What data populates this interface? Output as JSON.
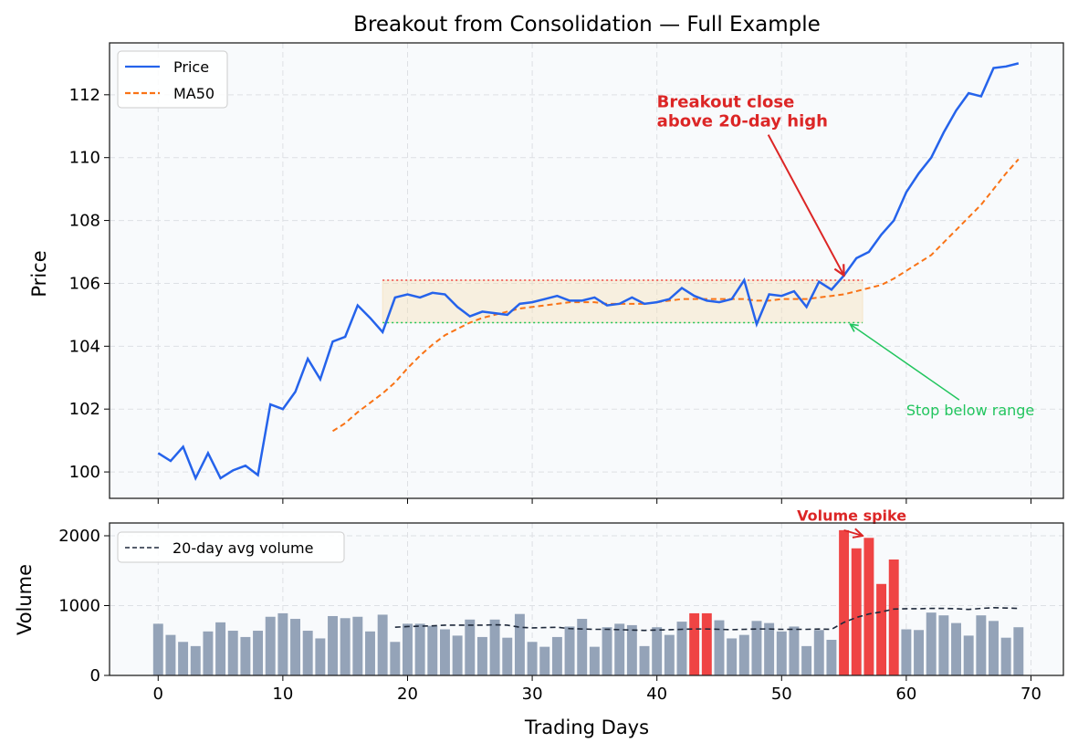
{
  "chart_data": [
    {
      "type": "line",
      "title": "Breakout from Consolidation — Full Example",
      "xlabel": "",
      "ylabel": "Price",
      "xlim": [
        -3.9,
        72.6
      ],
      "ylim": [
        99.16,
        113.65
      ],
      "xticks": [
        0,
        10,
        20,
        30,
        40,
        50,
        60,
        70
      ],
      "yticks": [
        100,
        102,
        104,
        106,
        108,
        110,
        112
      ],
      "grid": true,
      "legend_placement": "upper-left",
      "series": [
        {
          "name": "Price",
          "color": "#2563eb",
          "style": "solid",
          "x_start": 0,
          "values": [
            100.6,
            100.35,
            100.8,
            99.8,
            100.6,
            99.8,
            100.05,
            100.2,
            99.9,
            102.15,
            102.0,
            102.55,
            103.6,
            102.95,
            104.15,
            104.3,
            105.3,
            104.9,
            104.45,
            105.55,
            105.65,
            105.55,
            105.7,
            105.65,
            105.25,
            104.95,
            105.1,
            105.05,
            105.0,
            105.35,
            105.4,
            105.5,
            105.6,
            105.45,
            105.45,
            105.55,
            105.3,
            105.35,
            105.55,
            105.35,
            105.4,
            105.5,
            105.85,
            105.6,
            105.45,
            105.4,
            105.5,
            106.1,
            104.7,
            105.65,
            105.6,
            105.75,
            105.25,
            106.05,
            105.8,
            106.25,
            106.8,
            107.0,
            107.55,
            108.0,
            108.9,
            109.5,
            110.0,
            110.8,
            111.5,
            112.05,
            111.95,
            112.85,
            112.9,
            113.0
          ]
        },
        {
          "name": "MA50",
          "color": "#f97316",
          "style": "dashed",
          "x_start": 14,
          "values": [
            101.3,
            101.55,
            101.9,
            102.2,
            102.5,
            102.85,
            103.3,
            103.7,
            104.05,
            104.35,
            104.55,
            104.75,
            104.9,
            105.0,
            105.1,
            105.2,
            105.25,
            105.3,
            105.35,
            105.4,
            105.4,
            105.4,
            105.35,
            105.35,
            105.35,
            105.35,
            105.4,
            105.45,
            105.5,
            105.5,
            105.5,
            105.5,
            105.5,
            105.5,
            105.45,
            105.45,
            105.5,
            105.5,
            105.5,
            105.55,
            105.6,
            105.65,
            105.75,
            105.85,
            105.95,
            106.15,
            106.4,
            106.65,
            106.9,
            107.3,
            107.7,
            108.1,
            108.5,
            109.0,
            109.5,
            109.95
          ]
        }
      ],
      "consolidation_range": {
        "x_start": 18,
        "x_end": 56.5,
        "low": 104.75,
        "high": 106.1,
        "fill_color": "#f5deb3",
        "high_line_color": "#ef4444",
        "low_line_color": "#22c55e"
      },
      "annotations": [
        {
          "text_lines": [
            "Breakout close",
            "above 20-day high"
          ],
          "color": "#dc2626",
          "text_at": [
            40,
            111.6
          ],
          "arrow_to": [
            55,
            106.25
          ]
        },
        {
          "text_lines": [
            "Stop below range"
          ],
          "color": "#22c55e",
          "text_at": [
            60,
            101.8
          ],
          "arrow_to": [
            55.5,
            104.7
          ]
        }
      ]
    },
    {
      "type": "bar",
      "xlabel": "Trading Days",
      "ylabel": "Volume",
      "xlim": [
        -3.9,
        72.6
      ],
      "ylim": [
        0,
        2183
      ],
      "xticks": [
        0,
        10,
        20,
        30,
        40,
        50,
        60,
        70
      ],
      "yticks": [
        0,
        1000,
        2000
      ],
      "grid": true,
      "legend_placement": "upper-left",
      "bar_color": "#94a3b8",
      "highlight_color": "#ef4444",
      "highlight_days": [
        43,
        44,
        55,
        56,
        57,
        58,
        59
      ],
      "values": [
        740,
        580,
        480,
        420,
        630,
        760,
        640,
        550,
        640,
        840,
        890,
        810,
        640,
        530,
        850,
        820,
        840,
        630,
        870,
        480,
        740,
        740,
        710,
        660,
        570,
        800,
        550,
        800,
        540,
        880,
        480,
        410,
        550,
        700,
        810,
        410,
        690,
        740,
        720,
        420,
        690,
        580,
        770,
        890,
        890,
        790,
        530,
        580,
        780,
        750,
        630,
        700,
        420,
        650,
        510,
        2080,
        1820,
        1970,
        1310,
        1660,
        660,
        650,
        900,
        860,
        750,
        570,
        860,
        780,
        540,
        690
      ],
      "series": [
        {
          "name": "20-day avg volume",
          "color": "#1e293b",
          "style": "dashed",
          "x_start": 19,
          "values": [
            690,
            700,
            705,
            710,
            720,
            720,
            720,
            720,
            725,
            720,
            690,
            680,
            685,
            690,
            670,
            665,
            660,
            660,
            655,
            650,
            645,
            650,
            655,
            660,
            665,
            665,
            660,
            655,
            660,
            665,
            665,
            660,
            660,
            660,
            665,
            660,
            760,
            830,
            880,
            910,
            950,
            955,
            955,
            960,
            960,
            955,
            945,
            960,
            970,
            965,
            960
          ]
        }
      ],
      "annotations": [
        {
          "text_lines": [
            "Volume spike"
          ],
          "color": "#dc2626",
          "text_at": [
            50.5,
            2200
          ],
          "arrow_to": [
            56.5,
            2000
          ]
        }
      ]
    }
  ]
}
